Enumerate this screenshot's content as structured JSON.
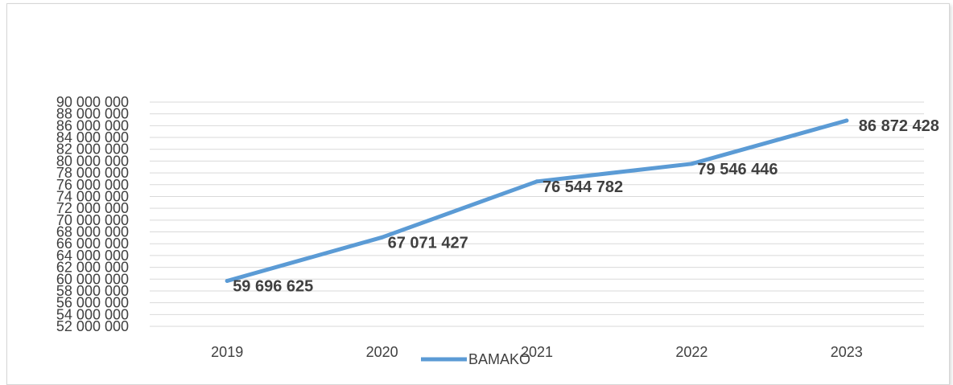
{
  "chart_data": {
    "type": "line",
    "x": [
      "2019",
      "2020",
      "2021",
      "2022",
      "2023"
    ],
    "series": [
      {
        "name": "BAMAKO",
        "values": [
          59696625,
          67071427,
          76544782,
          79546446,
          86872428
        ],
        "labels": [
          "59 696 625",
          "67 071 427",
          "76 544 782",
          "79 546 446",
          "86 872 428"
        ],
        "color": "#5B9BD5"
      }
    ],
    "y_ticks": [
      "52 000 000",
      "54 000 000",
      "56 000 000",
      "58 000 000",
      "60 000 000",
      "62 000 000",
      "64 000 000",
      "66 000 000",
      "68 000 000",
      "70 000 000",
      "72 000 000",
      "74 000 000",
      "76 000 000",
      "78 000 000",
      "80 000 000",
      "82 000 000",
      "84 000 000",
      "86 000 000",
      "88 000 000",
      "90 000 000"
    ],
    "ylim": [
      52000000,
      90000000
    ],
    "grid": true,
    "legend": "bottom",
    "title": "",
    "xlabel": "",
    "ylabel": ""
  }
}
